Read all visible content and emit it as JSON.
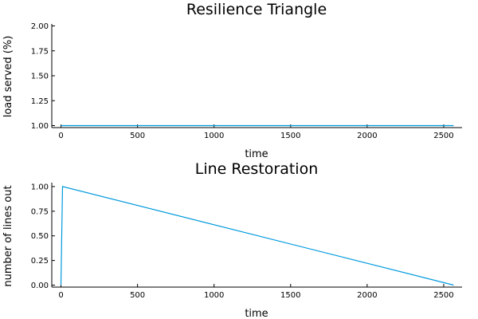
{
  "chart_data": [
    {
      "type": "line",
      "title": "Resilience Triangle",
      "xlabel": "time",
      "ylabel": "load served (%)",
      "xlim": [
        -60,
        2620
      ],
      "ylim": [
        0.98,
        2.02
      ],
      "xticks": [
        0,
        500,
        1000,
        1500,
        2000,
        2500
      ],
      "xtick_labels": [
        "0",
        "500",
        "1000",
        "1500",
        "2000",
        "2500"
      ],
      "yticks": [
        1.0,
        1.25,
        1.5,
        1.75,
        2.0
      ],
      "ytick_labels": [
        "1.00",
        "1.25",
        "1.50",
        "1.75",
        "2.00"
      ],
      "grid": false,
      "series": [
        {
          "color": "#0099dd",
          "x": [
            0,
            2565
          ],
          "y": [
            1.0,
            1.0
          ]
        }
      ]
    },
    {
      "type": "line",
      "title": "Line Restoration",
      "xlabel": "time",
      "ylabel": "number of lines out",
      "xlim": [
        -60,
        2620
      ],
      "ylim": [
        -0.02,
        1.04
      ],
      "xticks": [
        0,
        500,
        1000,
        1500,
        2000,
        2500
      ],
      "xtick_labels": [
        "0",
        "500",
        "1000",
        "1500",
        "2000",
        "2500"
      ],
      "yticks": [
        0.0,
        0.25,
        0.5,
        0.75,
        1.0
      ],
      "ytick_labels": [
        "0.00",
        "0.25",
        "0.50",
        "0.75",
        "1.00"
      ],
      "grid": false,
      "series": [
        {
          "color": "#0099dd",
          "x": [
            0,
            10,
            2565
          ],
          "y": [
            0.0,
            1.0,
            0.0
          ]
        }
      ]
    }
  ]
}
